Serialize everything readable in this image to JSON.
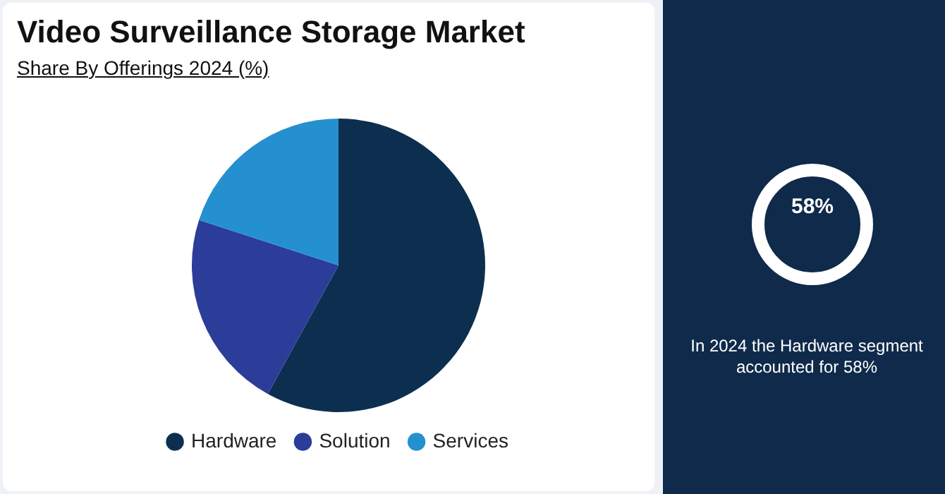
{
  "chart_data": {
    "type": "pie",
    "title": "Video Surveillance Storage Market",
    "subtitle": "Share By Offerings 2024 (%)",
    "categories": [
      "Hardware",
      "Solution",
      "Services"
    ],
    "values": [
      58,
      22,
      20
    ],
    "colors": [
      "#0d2f4f",
      "#2b3d99",
      "#2490cf"
    ],
    "legend": "bottom",
    "annotations": [
      "58%",
      "In 2024 the Hardware segment accounted for 58%"
    ]
  }
}
